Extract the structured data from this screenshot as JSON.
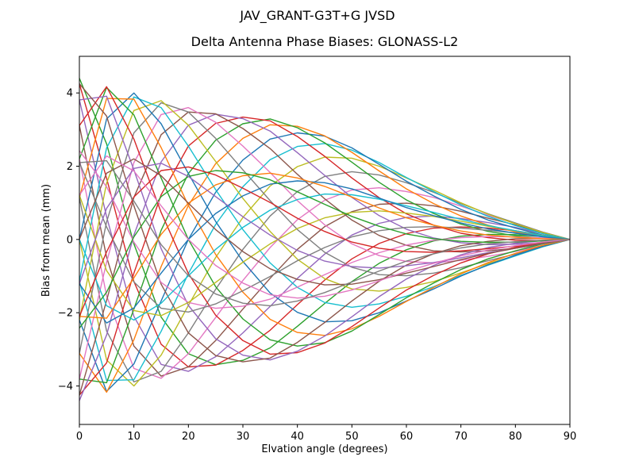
{
  "chart_data": {
    "type": "line",
    "suptitle": "JAV_GRANT-G3T+G JVSD",
    "title": "Delta Antenna Phase Biases: GLONASS-L2",
    "xlabel": "Elvation angle (degrees)",
    "ylabel": "Bias from mean (mm)",
    "xlim": [
      0,
      90
    ],
    "ylim": [
      -5.05,
      5.0
    ],
    "xticks": [
      0,
      10,
      20,
      30,
      40,
      50,
      60,
      70,
      80,
      90
    ],
    "yticks": [
      -4,
      -2,
      0,
      2,
      4
    ],
    "grid": false,
    "legend": "none",
    "frame_color": "#000000",
    "palette": [
      "#2ca02c",
      "#d62728",
      "#9467bd",
      "#8c564b",
      "#e377c2",
      "#7f7f7f",
      "#bcbd22",
      "#17becf",
      "#1f77b4",
      "#ff7f0e"
    ],
    "x": [
      0,
      5,
      10,
      15,
      20,
      25,
      30,
      35,
      40,
      45,
      50,
      55,
      60,
      65,
      70,
      75,
      80,
      85,
      90
    ],
    "series": [
      {
        "values": [
          4.4,
          2.61,
          -0.12,
          -2.12,
          -3.12,
          -3.42,
          -3.3,
          -2.96,
          -2.37,
          -1.75,
          -1.15,
          -0.65,
          -0.28,
          -0.04,
          0.09,
          0.14,
          0.13,
          0.08,
          0.0
        ]
      },
      {
        "values": [
          4.25,
          1.67,
          -1.15,
          -2.86,
          -3.48,
          -3.43,
          -3.03,
          -2.48,
          -1.78,
          -1.11,
          -0.53,
          -0.11,
          0.16,
          0.31,
          0.34,
          0.31,
          0.24,
          0.12,
          0.0
        ]
      },
      {
        "values": [
          3.81,
          0.62,
          -2.1,
          -3.41,
          -3.6,
          -3.2,
          -2.55,
          -1.83,
          -1.06,
          -0.4,
          0.12,
          0.44,
          0.6,
          0.64,
          0.57,
          0.46,
          0.33,
          0.16,
          0.0
        ]
      },
      {
        "values": [
          3.11,
          -0.48,
          -2.91,
          -3.73,
          -3.48,
          -2.76,
          -1.9,
          -1.06,
          -0.27,
          0.35,
          0.76,
          0.96,
          0.99,
          0.92,
          0.77,
          0.58,
          0.4,
          0.18,
          0.0
        ]
      },
      {
        "values": [
          2.2,
          -1.54,
          -3.52,
          -3.79,
          -3.12,
          -2.13,
          -1.12,
          -0.22,
          0.54,
          1.07,
          1.35,
          1.41,
          1.31,
          1.15,
          0.91,
          0.66,
          0.44,
          0.2,
          0.0
        ]
      },
      {
        "values": [
          1.14,
          -2.5,
          -3.89,
          -3.6,
          -2.55,
          -1.36,
          -0.27,
          0.64,
          1.31,
          1.72,
          1.85,
          1.76,
          1.55,
          1.29,
          0.98,
          0.7,
          0.45,
          0.2,
          0.0
        ]
      },
      {
        "values": [
          0.0,
          -3.29,
          -4.0,
          -3.16,
          -1.8,
          -0.49,
          0.6,
          1.46,
          1.99,
          2.25,
          2.22,
          2.0,
          1.68,
          1.35,
          1.0,
          0.69,
          0.43,
          0.19,
          0.0
        ]
      },
      {
        "values": [
          -1.14,
          -3.85,
          -3.83,
          -2.51,
          -0.93,
          0.41,
          1.44,
          2.18,
          2.54,
          2.62,
          2.44,
          2.1,
          1.69,
          1.31,
          0.94,
          0.63,
          0.38,
          0.16,
          0.0
        ]
      },
      {
        "values": [
          -2.2,
          -4.15,
          -3.4,
          -1.68,
          0.0,
          1.29,
          2.17,
          2.74,
          2.91,
          2.82,
          2.5,
          2.05,
          1.59,
          1.19,
          0.82,
          0.53,
          0.31,
          0.12,
          0.0
        ]
      },
      {
        "values": [
          -3.11,
          -4.17,
          -2.74,
          -0.74,
          0.93,
          2.07,
          2.76,
          3.13,
          3.09,
          2.83,
          2.38,
          1.87,
          1.38,
          0.98,
          0.64,
          0.39,
          0.21,
          0.08,
          0.0
        ]
      },
      {
        "values": [
          -3.81,
          -3.91,
          -1.9,
          0.25,
          1.8,
          2.71,
          3.16,
          3.29,
          3.05,
          2.64,
          2.11,
          1.56,
          1.08,
          0.71,
          0.42,
          0.22,
          0.1,
          0.03,
          0.0
        ]
      },
      {
        "values": [
          -4.25,
          -3.37,
          -0.92,
          1.22,
          2.55,
          3.17,
          3.34,
          3.24,
          2.81,
          2.27,
          1.68,
          1.14,
          0.7,
          0.39,
          0.17,
          0.05,
          -0.02,
          -0.03,
          0.0
        ]
      },
      {
        "values": [
          -4.4,
          -2.61,
          0.12,
          2.12,
          3.12,
          3.42,
          3.3,
          2.96,
          2.37,
          1.75,
          1.15,
          0.65,
          0.28,
          0.04,
          -0.09,
          -0.14,
          -0.13,
          -0.08,
          0.0
        ]
      },
      {
        "values": [
          -4.25,
          -1.67,
          1.15,
          2.86,
          3.48,
          3.43,
          3.03,
          2.48,
          1.78,
          1.11,
          0.53,
          0.11,
          -0.16,
          -0.31,
          -0.34,
          -0.31,
          -0.24,
          -0.12,
          0.0
        ]
      },
      {
        "values": [
          -3.81,
          -0.62,
          2.1,
          3.41,
          3.6,
          3.2,
          2.55,
          1.83,
          1.06,
          0.4,
          -0.12,
          -0.44,
          -0.6,
          -0.64,
          -0.57,
          -0.46,
          -0.33,
          -0.16,
          0.0
        ]
      },
      {
        "values": [
          -3.11,
          0.48,
          2.91,
          3.73,
          3.48,
          2.76,
          1.9,
          1.06,
          0.27,
          -0.35,
          -0.76,
          -0.96,
          -0.99,
          -0.92,
          -0.77,
          -0.58,
          -0.4,
          -0.18,
          0.0
        ]
      },
      {
        "values": [
          -2.2,
          1.54,
          3.52,
          3.79,
          3.12,
          2.13,
          1.12,
          0.22,
          -0.54,
          -1.07,
          -1.35,
          -1.41,
          -1.31,
          -1.15,
          -0.91,
          -0.66,
          -0.44,
          -0.2,
          0.0
        ]
      },
      {
        "values": [
          -1.14,
          2.5,
          3.89,
          3.6,
          2.55,
          1.36,
          0.27,
          -0.64,
          -1.31,
          -1.72,
          -1.85,
          -1.76,
          -1.55,
          -1.29,
          -0.98,
          -0.7,
          -0.45,
          -0.2,
          0.0
        ]
      },
      {
        "values": [
          0.0,
          3.29,
          4.0,
          3.16,
          1.8,
          0.49,
          -0.6,
          -1.46,
          -1.99,
          -2.25,
          -2.22,
          -2.0,
          -1.68,
          -1.35,
          -1.0,
          -0.69,
          -0.43,
          -0.19,
          0.0
        ]
      },
      {
        "values": [
          1.14,
          3.85,
          3.83,
          2.51,
          0.93,
          -0.41,
          -1.44,
          -2.18,
          -2.54,
          -2.62,
          -2.44,
          -2.1,
          -1.69,
          -1.31,
          -0.94,
          -0.63,
          -0.38,
          -0.16,
          0.0
        ]
      },
      {
        "values": [
          2.2,
          4.15,
          3.4,
          1.68,
          0.0,
          -1.29,
          -2.17,
          -2.74,
          -2.91,
          -2.82,
          -2.5,
          -2.05,
          -1.59,
          -1.19,
          -0.82,
          -0.53,
          -0.31,
          -0.12,
          0.0
        ]
      },
      {
        "values": [
          3.11,
          4.17,
          2.74,
          0.74,
          -0.93,
          -2.07,
          -2.76,
          -3.13,
          -3.09,
          -2.83,
          -2.38,
          -1.87,
          -1.38,
          -0.98,
          -0.64,
          -0.39,
          -0.21,
          -0.08,
          0.0
        ]
      },
      {
        "values": [
          3.81,
          3.91,
          1.9,
          -0.25,
          -1.8,
          -2.71,
          -3.16,
          -3.29,
          -3.05,
          -2.64,
          -2.11,
          -1.56,
          -1.08,
          -0.71,
          -0.42,
          -0.22,
          -0.1,
          -0.03,
          0.0
        ]
      },
      {
        "values": [
          4.25,
          3.37,
          0.92,
          -1.22,
          -2.55,
          -3.17,
          -3.34,
          -3.24,
          -2.81,
          -2.27,
          -1.68,
          -1.14,
          -0.7,
          -0.39,
          -0.17,
          -0.05,
          0.02,
          0.03,
          0.0
        ]
      },
      {
        "values": [
          2.42,
          1.44,
          -0.07,
          -1.17,
          -1.72,
          -1.88,
          -1.82,
          -1.63,
          -1.3,
          -0.96,
          -0.63,
          -0.36,
          -0.15,
          -0.02,
          0.05,
          0.08,
          0.07,
          0.04,
          0.0
        ]
      },
      {
        "values": [
          2.1,
          0.34,
          -1.16,
          -1.88,
          -1.98,
          -1.76,
          -1.4,
          -1.01,
          -0.58,
          -0.22,
          0.07,
          0.24,
          0.33,
          0.35,
          0.31,
          0.25,
          0.18,
          0.09,
          0.0
        ]
      },
      {
        "values": [
          1.21,
          -0.85,
          -1.94,
          -2.08,
          -1.72,
          -1.17,
          -0.62,
          -0.12,
          0.3,
          0.59,
          0.74,
          0.78,
          0.72,
          0.63,
          0.5,
          0.36,
          0.24,
          0.11,
          0.0
        ]
      },
      {
        "values": [
          0.0,
          -1.81,
          -2.2,
          -1.74,
          -0.99,
          -0.27,
          0.33,
          0.8,
          1.09,
          1.24,
          1.22,
          1.1,
          0.92,
          0.74,
          0.55,
          0.38,
          0.24,
          0.1,
          0.0
        ]
      },
      {
        "values": [
          -1.21,
          -2.28,
          -1.87,
          -0.92,
          0.0,
          0.71,
          1.19,
          1.51,
          1.6,
          1.55,
          1.38,
          1.13,
          0.87,
          0.65,
          0.45,
          0.29,
          0.17,
          0.07,
          0.0
        ]
      },
      {
        "values": [
          -2.1,
          -2.15,
          -1.05,
          0.14,
          0.99,
          1.49,
          1.74,
          1.81,
          1.68,
          1.45,
          1.16,
          0.86,
          0.59,
          0.39,
          0.23,
          0.12,
          0.06,
          0.02,
          0.0
        ]
      },
      {
        "values": [
          -2.42,
          -1.44,
          0.07,
          1.17,
          1.72,
          1.88,
          1.82,
          1.63,
          1.3,
          0.96,
          0.63,
          0.36,
          0.15,
          0.02,
          -0.05,
          -0.08,
          -0.07,
          -0.04,
          0.0
        ]
      },
      {
        "values": [
          -2.1,
          -0.34,
          1.16,
          1.88,
          1.98,
          1.76,
          1.4,
          1.01,
          0.58,
          0.22,
          -0.07,
          -0.24,
          -0.33,
          -0.35,
          -0.31,
          -0.25,
          -0.18,
          -0.09,
          0.0
        ]
      },
      {
        "values": [
          -1.21,
          0.85,
          1.94,
          2.08,
          1.72,
          1.17,
          0.62,
          0.12,
          -0.3,
          -0.59,
          -0.74,
          -0.78,
          -0.72,
          -0.63,
          -0.5,
          -0.36,
          -0.24,
          -0.11,
          0.0
        ]
      },
      {
        "values": [
          0.0,
          1.81,
          2.2,
          1.74,
          0.99,
          0.27,
          -0.33,
          -0.8,
          -1.09,
          -1.24,
          -1.22,
          -1.1,
          -0.92,
          -0.74,
          -0.55,
          -0.38,
          -0.24,
          -0.1,
          0.0
        ]
      },
      {
        "values": [
          1.21,
          2.28,
          1.87,
          0.92,
          0.0,
          -0.71,
          -1.19,
          -1.51,
          -1.6,
          -1.55,
          -1.38,
          -1.13,
          -0.87,
          -0.65,
          -0.45,
          -0.29,
          -0.17,
          -0.07,
          0.0
        ]
      },
      {
        "values": [
          2.1,
          2.15,
          1.05,
          -0.14,
          -0.99,
          -1.49,
          -1.74,
          -1.81,
          -1.68,
          -1.45,
          -1.16,
          -0.86,
          -0.59,
          -0.39,
          -0.23,
          -0.12,
          -0.06,
          -0.02,
          0.0
        ]
      }
    ]
  }
}
